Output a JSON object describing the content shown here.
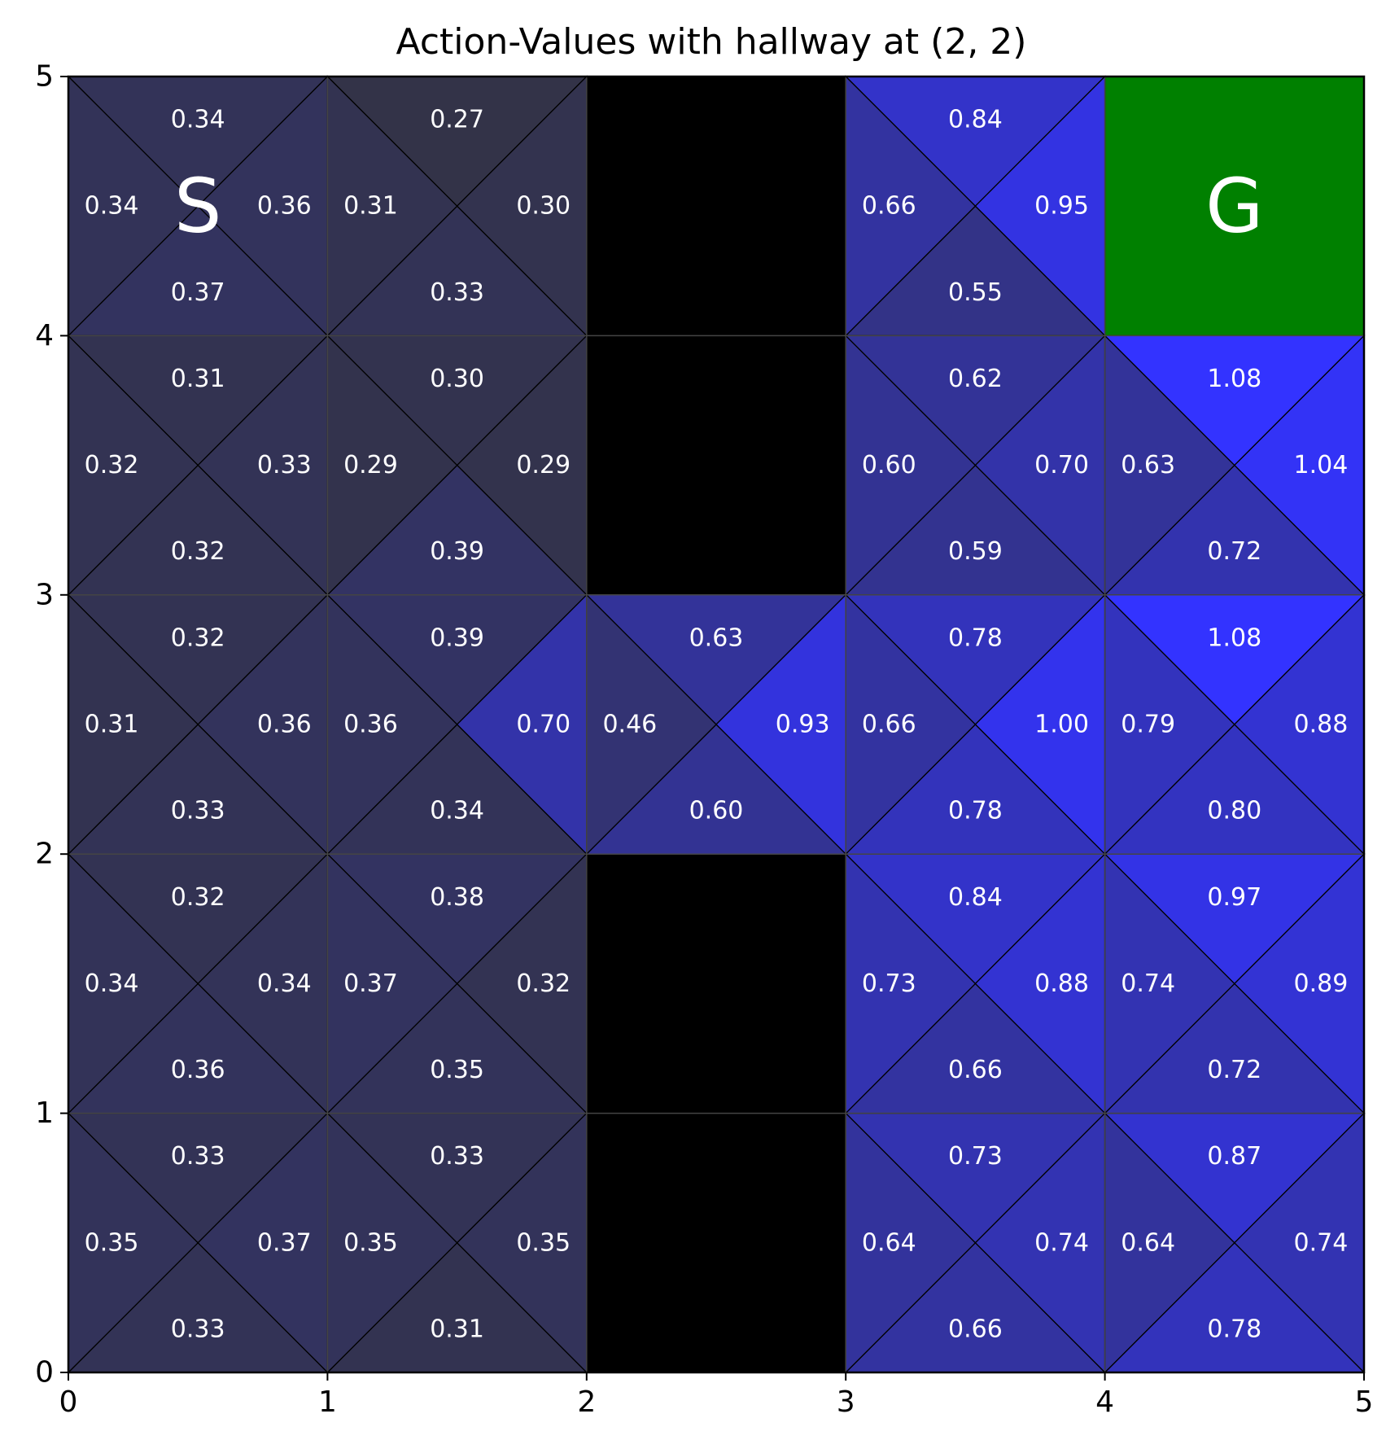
{
  "chart_data": {
    "type": "heatmap",
    "title": "Action-Values with hallway at (2, 2)",
    "xlabel": "",
    "ylabel": "",
    "xlim": [
      0,
      5
    ],
    "ylim": [
      0,
      5
    ],
    "x_ticks": [
      "0",
      "1",
      "2",
      "3",
      "4",
      "5"
    ],
    "y_ticks": [
      "0",
      "1",
      "2",
      "3",
      "4",
      "5"
    ],
    "grid": true,
    "colors": {
      "low": "#333348",
      "high": "#3333ff",
      "wall": "#000000",
      "goal": "#008000",
      "value_text": "#ffffff"
    },
    "value_range": [
      0.27,
      1.08
    ],
    "walls": [
      [
        2,
        0
      ],
      [
        2,
        1
      ],
      [
        2,
        3
      ],
      [
        2,
        4
      ]
    ],
    "goal": {
      "cell": [
        4,
        4
      ],
      "label": "G"
    },
    "start": {
      "cell": [
        0,
        4
      ],
      "label": "S"
    },
    "cells": [
      {
        "x": 0,
        "y": 4,
        "up": "0.34",
        "down": "0.37",
        "left": "0.34",
        "right": "0.36"
      },
      {
        "x": 1,
        "y": 4,
        "up": "0.27",
        "down": "0.33",
        "left": "0.31",
        "right": "0.30"
      },
      {
        "x": 3,
        "y": 4,
        "up": "0.84",
        "down": "0.55",
        "left": "0.66",
        "right": "0.95"
      },
      {
        "x": 0,
        "y": 3,
        "up": "0.31",
        "down": "0.32",
        "left": "0.32",
        "right": "0.33"
      },
      {
        "x": 1,
        "y": 3,
        "up": "0.30",
        "down": "0.39",
        "left": "0.29",
        "right": "0.29"
      },
      {
        "x": 3,
        "y": 3,
        "up": "0.62",
        "down": "0.59",
        "left": "0.60",
        "right": "0.70"
      },
      {
        "x": 4,
        "y": 3,
        "up": "1.08",
        "down": "0.72",
        "left": "0.63",
        "right": "1.04"
      },
      {
        "x": 0,
        "y": 2,
        "up": "0.32",
        "down": "0.33",
        "left": "0.31",
        "right": "0.36"
      },
      {
        "x": 1,
        "y": 2,
        "up": "0.39",
        "down": "0.34",
        "left": "0.36",
        "right": "0.70"
      },
      {
        "x": 2,
        "y": 2,
        "up": "0.63",
        "down": "0.60",
        "left": "0.46",
        "right": "0.93"
      },
      {
        "x": 3,
        "y": 2,
        "up": "0.78",
        "down": "0.78",
        "left": "0.66",
        "right": "1.00"
      },
      {
        "x": 4,
        "y": 2,
        "up": "1.08",
        "down": "0.80",
        "left": "0.79",
        "right": "0.88"
      },
      {
        "x": 0,
        "y": 1,
        "up": "0.32",
        "down": "0.36",
        "left": "0.34",
        "right": "0.34"
      },
      {
        "x": 1,
        "y": 1,
        "up": "0.38",
        "down": "0.35",
        "left": "0.37",
        "right": "0.32"
      },
      {
        "x": 3,
        "y": 1,
        "up": "0.84",
        "down": "0.66",
        "left": "0.73",
        "right": "0.88"
      },
      {
        "x": 4,
        "y": 1,
        "up": "0.97",
        "down": "0.72",
        "left": "0.74",
        "right": "0.89"
      },
      {
        "x": 0,
        "y": 0,
        "up": "0.33",
        "down": "0.33",
        "left": "0.35",
        "right": "0.37"
      },
      {
        "x": 1,
        "y": 0,
        "up": "0.33",
        "down": "0.31",
        "left": "0.35",
        "right": "0.35"
      },
      {
        "x": 3,
        "y": 0,
        "up": "0.73",
        "down": "0.66",
        "left": "0.64",
        "right": "0.74"
      },
      {
        "x": 4,
        "y": 0,
        "up": "0.87",
        "down": "0.78",
        "left": "0.64",
        "right": "0.74"
      }
    ]
  }
}
